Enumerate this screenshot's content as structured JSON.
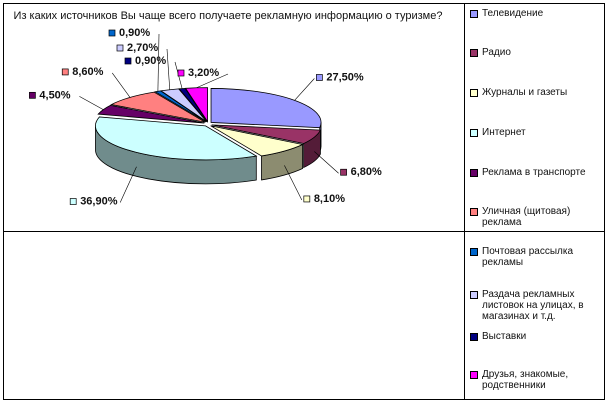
{
  "chart_data": {
    "type": "pie",
    "title": "Из каких источников  Вы чаще всего получаете  рекламную информацию  о туризме?",
    "slices": [
      {
        "label": "Телевидение",
        "value": 27.5,
        "text": "27,50%",
        "color": "#9999ff"
      },
      {
        "label": "Радио",
        "value": 6.8,
        "text": "6,80%",
        "color": "#993366"
      },
      {
        "label": "Журналы и газеты",
        "value": 8.1,
        "text": "8,10%",
        "color": "#ffffcc"
      },
      {
        "label": "Интернет",
        "value": 36.9,
        "text": "36,90%",
        "color": "#ccffff"
      },
      {
        "label": "Реклама в транспорте",
        "value": 4.5,
        "text": "4,50%",
        "color": "#660066"
      },
      {
        "label": "Уличная (щитовая) реклама",
        "value": 8.6,
        "text": "8,60%",
        "color": "#ff8080"
      },
      {
        "label": "Почтовая рассылка рекламы",
        "value": 0.9,
        "text": "0,90%",
        "color": "#0066cc"
      },
      {
        "label": "Раздача рекламных листовок на улицах,  в магазинах и т.д.",
        "value": 2.7,
        "text": "2,70%",
        "color": "#ccccff"
      },
      {
        "label": "Выставки",
        "value": 0.9,
        "text": "0,90%",
        "color": "#000080"
      },
      {
        "label": "Друзья, знакомые, родственники",
        "value": 3.2,
        "text": "3,20%",
        "color": "#ff00ff"
      }
    ],
    "legend_position": "right",
    "style": "3d-exploded"
  }
}
